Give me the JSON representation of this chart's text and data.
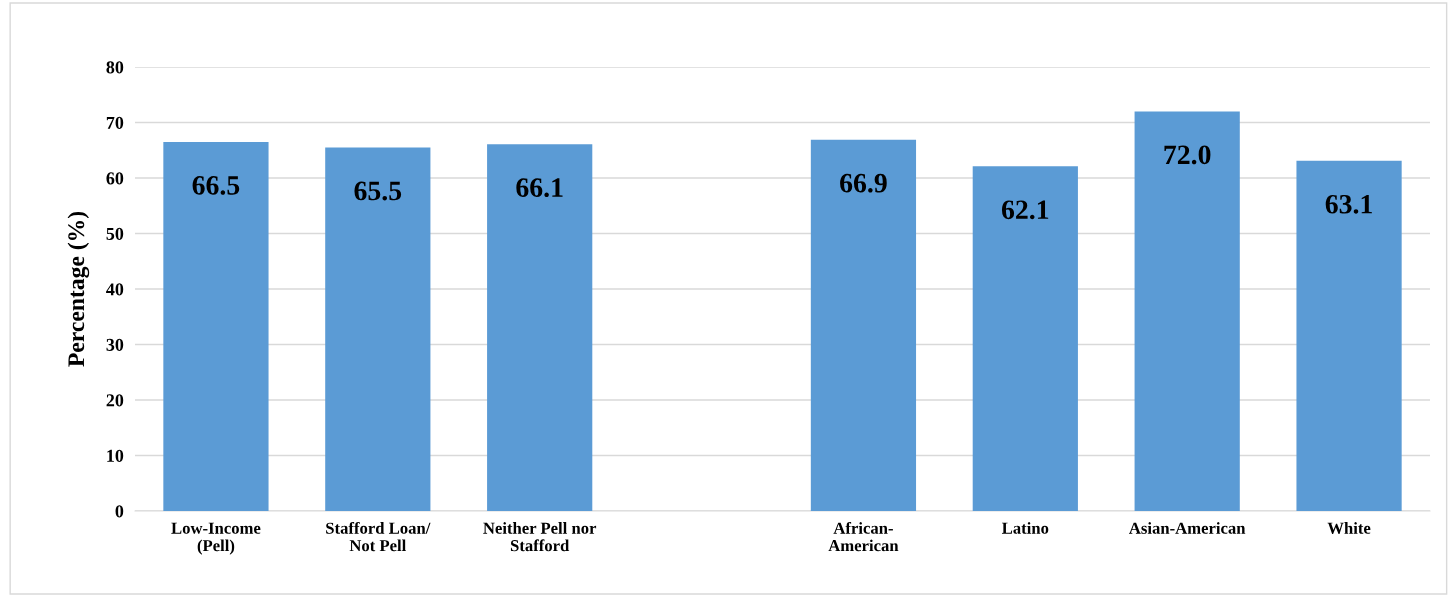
{
  "chart_data": {
    "type": "bar",
    "ylabel": "Percentage (%)",
    "categories": [
      "Low-Income\n(Pell)",
      "Stafford Loan/\nNot Pell",
      "Neither Pell nor\nStafford",
      null,
      "African-\nAmerican",
      "Latino",
      "Asian-American",
      "White"
    ],
    "values": [
      66.5,
      65.5,
      66.1,
      null,
      66.9,
      62.1,
      72.0,
      63.1
    ],
    "value_labels": [
      "66.5",
      "65.5",
      "66.1",
      null,
      "66.9",
      "62.1",
      "72.0",
      "63.1"
    ],
    "color": "#5b9bd5",
    "ylim": [
      0,
      80
    ],
    "yticks": [
      0,
      10,
      20,
      30,
      40,
      50,
      60,
      70,
      80
    ],
    "grid": "y",
    "legend": false
  }
}
